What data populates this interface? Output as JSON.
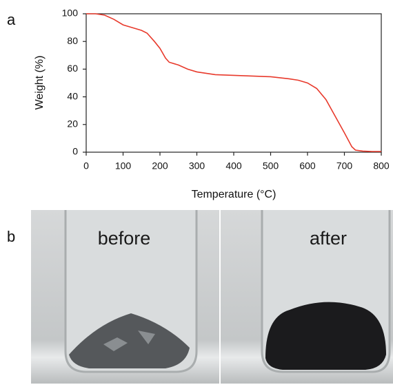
{
  "chart_data": {
    "type": "line",
    "panel_label": "a",
    "xlabel": "Temperature (°C)",
    "ylabel": "Weight (%)",
    "x": [
      0,
      25,
      50,
      75,
      100,
      125,
      150,
      165,
      185,
      200,
      215,
      225,
      250,
      275,
      300,
      350,
      400,
      450,
      500,
      550,
      575,
      600,
      625,
      650,
      675,
      700,
      720,
      730,
      750,
      775,
      800
    ],
    "values": [
      100,
      100,
      99,
      96,
      92,
      90,
      88,
      86,
      80,
      75,
      68,
      65,
      63,
      60,
      58,
      56,
      55.5,
      55,
      54.5,
      53,
      52,
      50,
      46,
      38,
      26,
      14,
      4,
      1.5,
      0.8,
      0.5,
      0.5
    ],
    "color": "#e8392b",
    "xlim": [
      0,
      800
    ],
    "xticks": [
      0,
      100,
      200,
      300,
      400,
      500,
      600,
      700,
      800
    ],
    "ylim": [
      0,
      100
    ],
    "yticks": [
      0,
      20,
      40,
      60,
      80,
      100
    ]
  },
  "photos": {
    "panel_label": "b",
    "left_label": "before",
    "right_label": "after"
  }
}
